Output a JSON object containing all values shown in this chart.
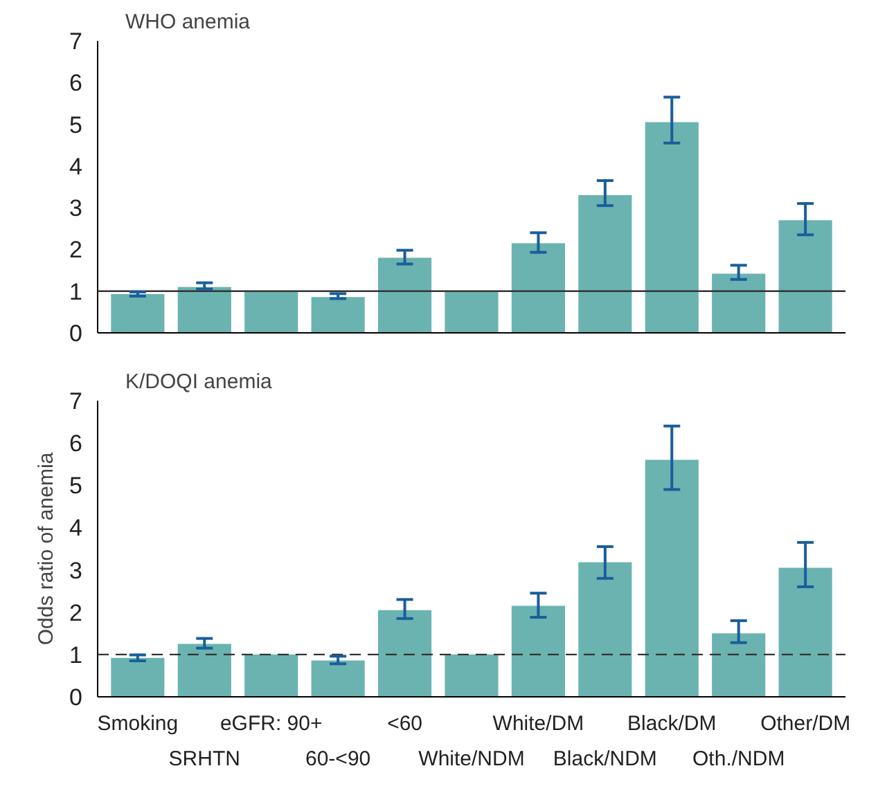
{
  "chart_data": [
    {
      "type": "bar",
      "title": "WHO anemia",
      "categories": [
        null,
        null,
        null,
        null,
        null,
        null,
        null,
        null,
        null,
        null,
        null
      ],
      "series": [
        {
          "color": "#6ab3b0",
          "values": [
            0.93,
            1.1,
            1.0,
            0.86,
            1.8,
            1.0,
            2.15,
            3.3,
            5.05,
            1.42,
            2.7
          ],
          "errors": [
            [
              0.88,
              0.98
            ],
            [
              1.05,
              1.2
            ],
            null,
            [
              0.82,
              0.94
            ],
            [
              1.65,
              1.98
            ],
            null,
            [
              1.93,
              2.4
            ],
            [
              3.05,
              3.65
            ],
            [
              4.55,
              5.65
            ],
            [
              1.28,
              1.62
            ],
            [
              2.35,
              3.1
            ]
          ]
        }
      ],
      "ylim": [
        0,
        7
      ],
      "yticks": [
        0,
        1,
        2,
        3,
        4,
        5,
        6,
        7
      ],
      "grid": false,
      "tick_labels": "y",
      "ref_lines": [
        {
          "axis": "y",
          "value": 1,
          "color": "#333333",
          "line_style": "solid"
        }
      ]
    },
    {
      "type": "bar",
      "title": "K/DOQI anemia",
      "ylabel": "Odds ratio of anemia",
      "categories": [
        "Smoking",
        "SRHTN",
        "eGFR: 90+",
        "60-<90",
        "<60",
        "White/NDM",
        "White/DM",
        "Black/NDM",
        "Black/DM",
        "Oth./NDM",
        "Other/DM"
      ],
      "series": [
        {
          "color": "#6ab3b0",
          "values": [
            0.92,
            1.25,
            1.0,
            0.86,
            2.05,
            1.0,
            2.15,
            3.18,
            5.6,
            1.5,
            3.05
          ],
          "errors": [
            [
              0.85,
              0.99
            ],
            [
              1.15,
              1.38
            ],
            null,
            [
              0.78,
              0.96
            ],
            [
              1.85,
              2.3
            ],
            null,
            [
              1.88,
              2.45
            ],
            [
              2.8,
              3.55
            ],
            [
              4.9,
              6.4
            ],
            [
              1.28,
              1.8
            ],
            [
              2.6,
              3.65
            ]
          ]
        }
      ],
      "ylim": [
        0,
        7
      ],
      "yticks": [
        0,
        1,
        2,
        3,
        4,
        5,
        6,
        7
      ],
      "grid": false,
      "ref_lines": [
        {
          "axis": "y",
          "value": 1,
          "color": "#333333",
          "line_style": "dashed"
        }
      ]
    }
  ]
}
